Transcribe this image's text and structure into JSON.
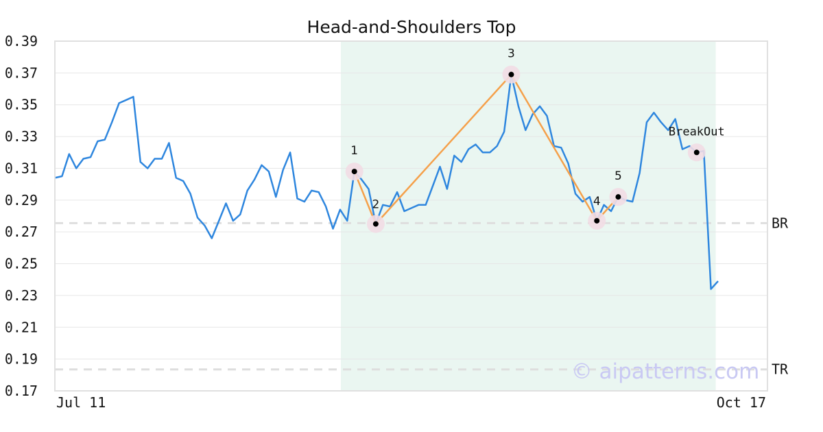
{
  "chart_data": {
    "type": "line",
    "title": "Head-and-Shoulders Top",
    "xlabel": "",
    "ylabel": "",
    "ylim": [
      0.17,
      0.39
    ],
    "yticks": [
      "0.17",
      "0.19",
      "0.21",
      "0.23",
      "0.25",
      "0.27",
      "0.29",
      "0.31",
      "0.33",
      "0.35",
      "0.37",
      "0.39"
    ],
    "x_tick_labels": [
      "Jul 11",
      "Oct 17"
    ],
    "grid": true,
    "legend": "none",
    "line_color": "#2e86de",
    "pattern_color": "#f5a04a",
    "highlight_color": "#eaf6f1",
    "series": [
      {
        "values": [
          0.304,
          0.305,
          0.319,
          0.31,
          0.316,
          0.317,
          0.327,
          0.328,
          0.339,
          0.351,
          0.353,
          0.355,
          0.314,
          0.31,
          0.316,
          0.316,
          0.326,
          0.304,
          0.302,
          0.294,
          0.279,
          0.274,
          0.266,
          0.277,
          0.288,
          0.277,
          0.281,
          0.296,
          0.303,
          0.312,
          0.308,
          0.292,
          0.309,
          0.32,
          0.291,
          0.289,
          0.296,
          0.295,
          0.286,
          0.272,
          0.284,
          0.277,
          0.308,
          0.303,
          0.297,
          0.275,
          0.287,
          0.286,
          0.295,
          0.283,
          0.285,
          0.287,
          0.287,
          0.299,
          0.311,
          0.297,
          0.318,
          0.314,
          0.322,
          0.325,
          0.32,
          0.32,
          0.324,
          0.333,
          0.369,
          0.349,
          0.334,
          0.344,
          0.349,
          0.343,
          0.324,
          0.323,
          0.313,
          0.294,
          0.289,
          0.292,
          0.277,
          0.287,
          0.283,
          0.292,
          0.29,
          0.289,
          0.307,
          0.339,
          0.345,
          0.339,
          0.334,
          0.341,
          0.322,
          0.324,
          0.32,
          0.321,
          0.234,
          0.239
        ]
      }
    ],
    "highlight_range_index": [
      40,
      92
    ],
    "pattern_points": [
      {
        "label": "1",
        "index": 42,
        "value": 0.308
      },
      {
        "label": "2",
        "index": 45,
        "value": 0.275
      },
      {
        "label": "3",
        "index": 64,
        "value": 0.369
      },
      {
        "label": "4",
        "index": 76,
        "value": 0.277
      },
      {
        "label": "5",
        "index": 79,
        "value": 0.292
      }
    ],
    "breakout": {
      "label": "BreakOut",
      "index": 90,
      "value": 0.32
    },
    "reference_lines": [
      {
        "label": "BR",
        "value": 0.2755
      },
      {
        "label": "TR",
        "value": 0.1835
      }
    ]
  },
  "watermark": "© aipatterns.com"
}
